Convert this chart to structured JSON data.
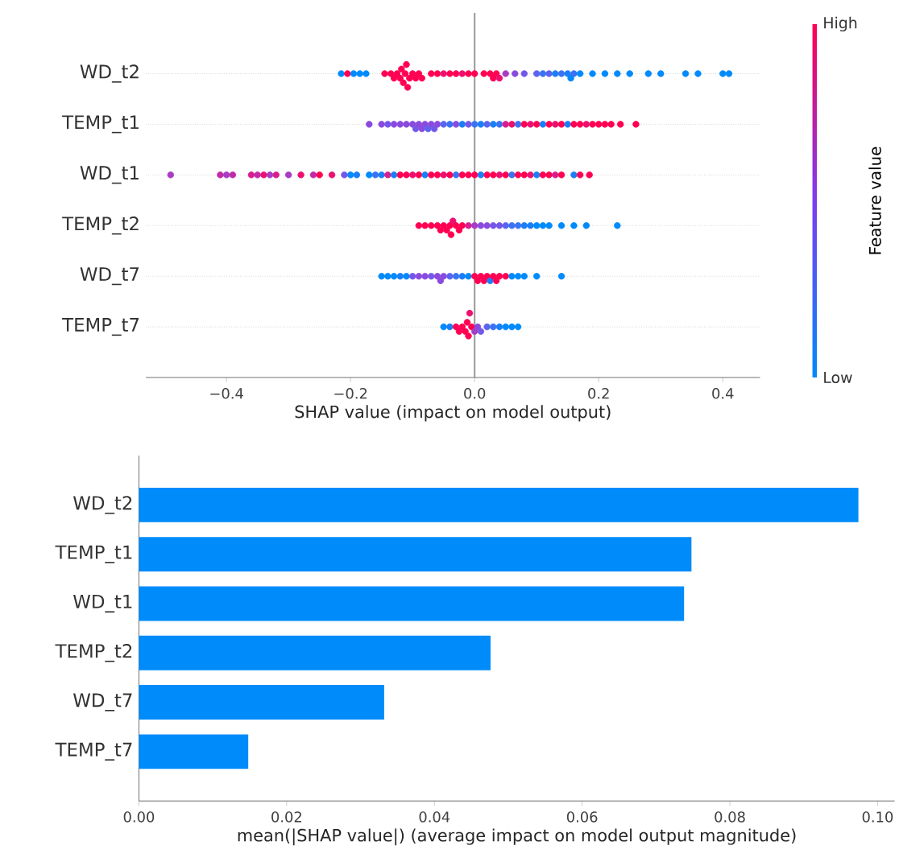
{
  "chart_data": [
    {
      "type": "scatter",
      "orientation": "horizontal",
      "marker": "circle",
      "grid": "y",
      "categories": [
        "WD_t2",
        "TEMP_t1",
        "WD_t1",
        "TEMP_t2",
        "WD_t7",
        "TEMP_t7"
      ],
      "xlabel": "SHAP value (impact on model output)",
      "clabel": "Feature value",
      "annotations": [
        "High",
        "Low"
      ],
      "xlim": [
        -0.53,
        0.46
      ],
      "xticks": [
        {
          "value": -0.4,
          "label": "−0.4"
        },
        {
          "value": -0.2,
          "label": "−0.2"
        },
        {
          "value": 0,
          "label": "0.0"
        },
        {
          "value": 0.2,
          "label": "0.2"
        },
        {
          "value": 0.4,
          "label": "0.4"
        }
      ],
      "ref_lines": [
        {
          "axis": "x",
          "value": 0,
          "color": "#999999"
        }
      ],
      "series": [
        {
          "x": [
            "WD_t2",
            "WD_t2",
            "WD_t2",
            "WD_t2",
            "WD_t2",
            "WD_t2",
            "WD_t2",
            "WD_t2",
            "WD_t2",
            "WD_t2",
            "WD_t2",
            "WD_t2",
            "WD_t2",
            "WD_t2",
            "WD_t2",
            "WD_t2",
            "WD_t2",
            "WD_t2",
            "WD_t2",
            "WD_t2",
            "WD_t2",
            "WD_t2",
            "WD_t2",
            "WD_t2",
            "WD_t2",
            "WD_t2",
            "WD_t2",
            "WD_t2",
            "WD_t2",
            "WD_t2",
            "WD_t2",
            "WD_t2",
            "WD_t2",
            "WD_t2",
            "WD_t2",
            "WD_t2",
            "WD_t2",
            "WD_t2",
            "WD_t2",
            "WD_t2",
            "WD_t2",
            "WD_t2",
            "WD_t2",
            "WD_t2",
            "WD_t2",
            "WD_t2",
            "WD_t2",
            "WD_t2",
            "WD_t2",
            "WD_t2",
            "WD_t2",
            "WD_t2",
            "WD_t2",
            "WD_t2",
            "WD_t2"
          ],
          "values": [
            -0.215,
            -0.205,
            -0.195,
            -0.185,
            -0.175,
            -0.145,
            -0.135,
            -0.13,
            -0.125,
            -0.12,
            -0.118,
            -0.115,
            -0.112,
            -0.11,
            -0.108,
            -0.105,
            -0.1,
            -0.095,
            -0.09,
            -0.085,
            -0.07,
            -0.06,
            -0.05,
            -0.04,
            -0.03,
            -0.02,
            -0.01,
            0.0,
            0.015,
            0.025,
            0.03,
            0.035,
            0.04,
            0.05,
            0.065,
            0.08,
            0.1,
            0.11,
            0.12,
            0.13,
            0.14,
            0.15,
            0.155,
            0.16,
            0.17,
            0.19,
            0.21,
            0.23,
            0.25,
            0.28,
            0.3,
            0.34,
            0.36,
            0.4,
            0.41
          ],
          "colors": [
            "#008afa",
            "#ff0052",
            "#008afa",
            "#008afa",
            "#008afa",
            "#ff0052",
            "#ff0052",
            "#ff0052",
            "#ff0052",
            "#ff0052",
            "#ff0052",
            "#ff0052",
            "#ff0052",
            "#ff0052",
            "#ff0052",
            "#ff0052",
            "#ff0052",
            "#ff0052",
            "#ff0052",
            "#ff0052",
            "#ff0052",
            "#ff0052",
            "#ec1070",
            "#ff0052",
            "#ff0052",
            "#ec1070",
            "#ff0052",
            "#ff0052",
            "#ff0052",
            "#ff0052",
            "#ff0052",
            "#ff0052",
            "#ec1070",
            "#a83cc4",
            "#8a4ade",
            "#7457e8",
            "#5a64ee",
            "#3a72f2",
            "#5a64ee",
            "#1a7ef6",
            "#3a72f2",
            "#1a7ef6",
            "#008afa",
            "#3a72f2",
            "#008afa",
            "#008afa",
            "#008afa",
            "#008afa",
            "#008afa",
            "#008afa",
            "#008afa",
            "#008afa",
            "#008afa",
            "#008afa",
            "#008afa"
          ]
        },
        {
          "x": [
            "TEMP_t1",
            "TEMP_t1",
            "TEMP_t1",
            "TEMP_t1",
            "TEMP_t1",
            "TEMP_t1",
            "TEMP_t1",
            "TEMP_t1",
            "TEMP_t1",
            "TEMP_t1",
            "TEMP_t1",
            "TEMP_t1",
            "TEMP_t1",
            "TEMP_t1",
            "TEMP_t1",
            "TEMP_t1",
            "TEMP_t1",
            "TEMP_t1",
            "TEMP_t1",
            "TEMP_t1",
            "TEMP_t1",
            "TEMP_t1",
            "TEMP_t1",
            "TEMP_t1",
            "TEMP_t1",
            "TEMP_t1",
            "TEMP_t1",
            "TEMP_t1",
            "TEMP_t1",
            "TEMP_t1",
            "TEMP_t1",
            "TEMP_t1",
            "TEMP_t1",
            "TEMP_t1",
            "TEMP_t1",
            "TEMP_t1",
            "TEMP_t1",
            "TEMP_t1",
            "TEMP_t1",
            "TEMP_t1",
            "TEMP_t1",
            "TEMP_t1",
            "TEMP_t1",
            "TEMP_t1",
            "TEMP_t1"
          ],
          "values": [
            -0.17,
            -0.15,
            -0.14,
            -0.13,
            -0.12,
            -0.11,
            -0.1,
            -0.095,
            -0.09,
            -0.085,
            -0.08,
            -0.075,
            -0.07,
            -0.065,
            -0.06,
            -0.05,
            -0.04,
            -0.03,
            -0.02,
            -0.01,
            0.0,
            0.01,
            0.02,
            0.03,
            0.04,
            0.05,
            0.06,
            0.07,
            0.08,
            0.09,
            0.1,
            0.11,
            0.12,
            0.13,
            0.14,
            0.15,
            0.16,
            0.17,
            0.18,
            0.19,
            0.2,
            0.21,
            0.22,
            0.235,
            0.26
          ],
          "colors": [
            "#8a4ade",
            "#8a4ade",
            "#7457e8",
            "#8a4ade",
            "#8a4ade",
            "#8a4ade",
            "#8a4ade",
            "#7457e8",
            "#8a4ade",
            "#8a4ade",
            "#8a4ade",
            "#5a64ee",
            "#8a4ade",
            "#7457e8",
            "#8a4ade",
            "#5a64ee",
            "#3a72f2",
            "#8a4ade",
            "#1a7ef6",
            "#7457e8",
            "#3a72f2",
            "#1a7ef6",
            "#5a64ee",
            "#1a7ef6",
            "#3a72f2",
            "#d81e8e",
            "#ec1070",
            "#3a72f2",
            "#ff0052",
            "#ec1070",
            "#ff0052",
            "#1a7ef6",
            "#ff0052",
            "#ec1070",
            "#ff0052",
            "#1a7ef6",
            "#ff0052",
            "#ff0052",
            "#ec1070",
            "#ff0052",
            "#ff0052",
            "#ff0052",
            "#ff0052",
            "#ff0052",
            "#ff0052"
          ]
        },
        {
          "x": [
            "WD_t1",
            "WD_t1",
            "WD_t1",
            "WD_t1",
            "WD_t1",
            "WD_t1",
            "WD_t1",
            "WD_t1",
            "WD_t1",
            "WD_t1",
            "WD_t1",
            "WD_t1",
            "WD_t1",
            "WD_t1",
            "WD_t1",
            "WD_t1",
            "WD_t1",
            "WD_t1",
            "WD_t1",
            "WD_t1",
            "WD_t1",
            "WD_t1",
            "WD_t1",
            "WD_t1",
            "WD_t1",
            "WD_t1",
            "WD_t1",
            "WD_t1",
            "WD_t1",
            "WD_t1",
            "WD_t1",
            "WD_t1",
            "WD_t1",
            "WD_t1",
            "WD_t1",
            "WD_t1",
            "WD_t1",
            "WD_t1",
            "WD_t1",
            "WD_t1",
            "WD_t1",
            "WD_t1",
            "WD_t1",
            "WD_t1",
            "WD_t1",
            "WD_t1",
            "WD_t1",
            "WD_t1",
            "WD_t1",
            "WD_t1",
            "WD_t1",
            "WD_t1"
          ],
          "values": [
            -0.49,
            -0.41,
            -0.4,
            -0.39,
            -0.36,
            -0.35,
            -0.34,
            -0.33,
            -0.32,
            -0.3,
            -0.28,
            -0.26,
            -0.25,
            -0.23,
            -0.21,
            -0.2,
            -0.19,
            -0.17,
            -0.16,
            -0.15,
            -0.14,
            -0.13,
            -0.12,
            -0.11,
            -0.1,
            -0.09,
            -0.08,
            -0.07,
            -0.06,
            -0.05,
            -0.04,
            -0.03,
            -0.02,
            -0.01,
            0.0,
            0.01,
            0.02,
            0.03,
            0.04,
            0.05,
            0.06,
            0.07,
            0.08,
            0.09,
            0.1,
            0.11,
            0.12,
            0.13,
            0.14,
            0.16,
            0.17,
            0.185
          ],
          "colors": [
            "#a83cc4",
            "#c12aa8",
            "#a83cc4",
            "#c12aa8",
            "#d81e8e",
            "#c12aa8",
            "#ec1070",
            "#a83cc4",
            "#d81e8e",
            "#a83cc4",
            "#ec1070",
            "#c12aa8",
            "#ff0052",
            "#ec1070",
            "#7457e8",
            "#008afa",
            "#1a7ef6",
            "#008afa",
            "#3a72f2",
            "#1a7ef6",
            "#d81e8e",
            "#1a7ef6",
            "#ff0052",
            "#ff0052",
            "#ec1070",
            "#ff0052",
            "#1a7ef6",
            "#ff0052",
            "#ff0052",
            "#ec1070",
            "#ff0052",
            "#3a72f2",
            "#ff0052",
            "#ff0052",
            "#ff0052",
            "#1a7ef6",
            "#ff0052",
            "#ff0052",
            "#ec1070",
            "#ff0052",
            "#3a72f2",
            "#ff0052",
            "#ff0052",
            "#ec1070",
            "#1a7ef6",
            "#ff0052",
            "#ff0052",
            "#d81e8e",
            "#ff0052",
            "#1a7ef6",
            "#ff0052",
            "#ff0052"
          ]
        },
        {
          "x": [
            "TEMP_t2",
            "TEMP_t2",
            "TEMP_t2",
            "TEMP_t2",
            "TEMP_t2",
            "TEMP_t2",
            "TEMP_t2",
            "TEMP_t2",
            "TEMP_t2",
            "TEMP_t2",
            "TEMP_t2",
            "TEMP_t2",
            "TEMP_t2",
            "TEMP_t2",
            "TEMP_t2",
            "TEMP_t2",
            "TEMP_t2",
            "TEMP_t2",
            "TEMP_t2",
            "TEMP_t2",
            "TEMP_t2",
            "TEMP_t2",
            "TEMP_t2",
            "TEMP_t2",
            "TEMP_t2",
            "TEMP_t2",
            "TEMP_t2",
            "TEMP_t2",
            "TEMP_t2",
            "TEMP_t2",
            "TEMP_t2"
          ],
          "values": [
            -0.09,
            -0.08,
            -0.07,
            -0.06,
            -0.055,
            -0.05,
            -0.045,
            -0.04,
            -0.038,
            -0.035,
            -0.03,
            -0.025,
            -0.02,
            -0.01,
            0.0,
            0.01,
            0.02,
            0.03,
            0.04,
            0.05,
            0.06,
            0.07,
            0.08,
            0.09,
            0.1,
            0.11,
            0.12,
            0.14,
            0.16,
            0.18,
            0.23
          ],
          "colors": [
            "#ff0052",
            "#ff0052",
            "#ff0052",
            "#ff0052",
            "#ff0052",
            "#ff0052",
            "#ff0052",
            "#ff0052",
            "#ff0052",
            "#ec1070",
            "#ff0052",
            "#ff0052",
            "#ff0052",
            "#d81e8e",
            "#a83cc4",
            "#8a4ade",
            "#8a4ade",
            "#7457e8",
            "#7457e8",
            "#5a64ee",
            "#3a72f2",
            "#3a72f2",
            "#1a7ef6",
            "#1a7ef6",
            "#008afa",
            "#008afa",
            "#008afa",
            "#008afa",
            "#008afa",
            "#008afa",
            "#008afa"
          ]
        },
        {
          "x": [
            "WD_t7",
            "WD_t7",
            "WD_t7",
            "WD_t7",
            "WD_t7",
            "WD_t7",
            "WD_t7",
            "WD_t7",
            "WD_t7",
            "WD_t7",
            "WD_t7",
            "WD_t7",
            "WD_t7",
            "WD_t7",
            "WD_t7",
            "WD_t7",
            "WD_t7",
            "WD_t7",
            "WD_t7",
            "WD_t7",
            "WD_t7",
            "WD_t7",
            "WD_t7",
            "WD_t7",
            "WD_t7",
            "WD_t7",
            "WD_t7",
            "WD_t7",
            "WD_t7",
            "WD_t7",
            "WD_t7"
          ],
          "values": [
            -0.15,
            -0.14,
            -0.13,
            -0.12,
            -0.11,
            -0.1,
            -0.09,
            -0.08,
            -0.07,
            -0.06,
            -0.055,
            -0.05,
            -0.04,
            -0.03,
            -0.02,
            -0.01,
            0.0,
            0.005,
            0.01,
            0.015,
            0.02,
            0.025,
            0.03,
            0.035,
            0.04,
            0.05,
            0.06,
            0.07,
            0.08,
            0.1,
            0.14
          ],
          "colors": [
            "#008afa",
            "#008afa",
            "#008afa",
            "#1a7ef6",
            "#008afa",
            "#7457e8",
            "#8a4ade",
            "#8a4ade",
            "#7457e8",
            "#8a4ade",
            "#8a4ade",
            "#8a4ade",
            "#5a64ee",
            "#3a72f2",
            "#1a7ef6",
            "#008afa",
            "#ff0052",
            "#ff0052",
            "#ff0052",
            "#ff0052",
            "#ff0052",
            "#1a7ef6",
            "#ff0052",
            "#ff0052",
            "#ff0052",
            "#ff0052",
            "#008afa",
            "#008afa",
            "#008afa",
            "#008afa",
            "#008afa"
          ]
        },
        {
          "x": [
            "TEMP_t7",
            "TEMP_t7",
            "TEMP_t7",
            "TEMP_t7",
            "TEMP_t7",
            "TEMP_t7",
            "TEMP_t7",
            "TEMP_t7",
            "TEMP_t7",
            "TEMP_t7",
            "TEMP_t7",
            "TEMP_t7",
            "TEMP_t7",
            "TEMP_t7",
            "TEMP_t7",
            "TEMP_t7",
            "TEMP_t7",
            "TEMP_t7",
            "TEMP_t7"
          ],
          "values": [
            -0.05,
            -0.04,
            -0.03,
            -0.025,
            -0.02,
            -0.015,
            -0.012,
            -0.01,
            -0.008,
            -0.005,
            0.0,
            0.005,
            0.01,
            0.02,
            0.03,
            0.04,
            0.05,
            0.06,
            0.07
          ],
          "colors": [
            "#008afa",
            "#1a7ef6",
            "#ff0052",
            "#ff0052",
            "#ff0052",
            "#ff0052",
            "#ff0052",
            "#ff0052",
            "#ec1070",
            "#ff0052",
            "#a83cc4",
            "#8a4ade",
            "#7457e8",
            "#5a64ee",
            "#3a72f2",
            "#1a7ef6",
            "#008afa",
            "#008afa",
            "#008afa"
          ]
        }
      ]
    },
    {
      "type": "bar",
      "orientation": "horizontal",
      "categories": [
        "WD_t2",
        "TEMP_t1",
        "WD_t1",
        "TEMP_t2",
        "WD_t7",
        "TEMP_t7"
      ],
      "values": [
        0.0974,
        0.0748,
        0.0738,
        0.0476,
        0.0332,
        0.0148
      ],
      "color": "#008bfb",
      "xlabel": "mean(|SHAP value|) (average impact on model output magnitude)",
      "xlim": [
        0,
        0.1023
      ],
      "xticks": [
        {
          "value": 0,
          "label": "0.00"
        },
        {
          "value": 0.02,
          "label": "0.02"
        },
        {
          "value": 0.04,
          "label": "0.04"
        },
        {
          "value": 0.06,
          "label": "0.06"
        },
        {
          "value": 0.08,
          "label": "0.08"
        },
        {
          "value": 0.1,
          "label": "0.10"
        }
      ]
    }
  ]
}
